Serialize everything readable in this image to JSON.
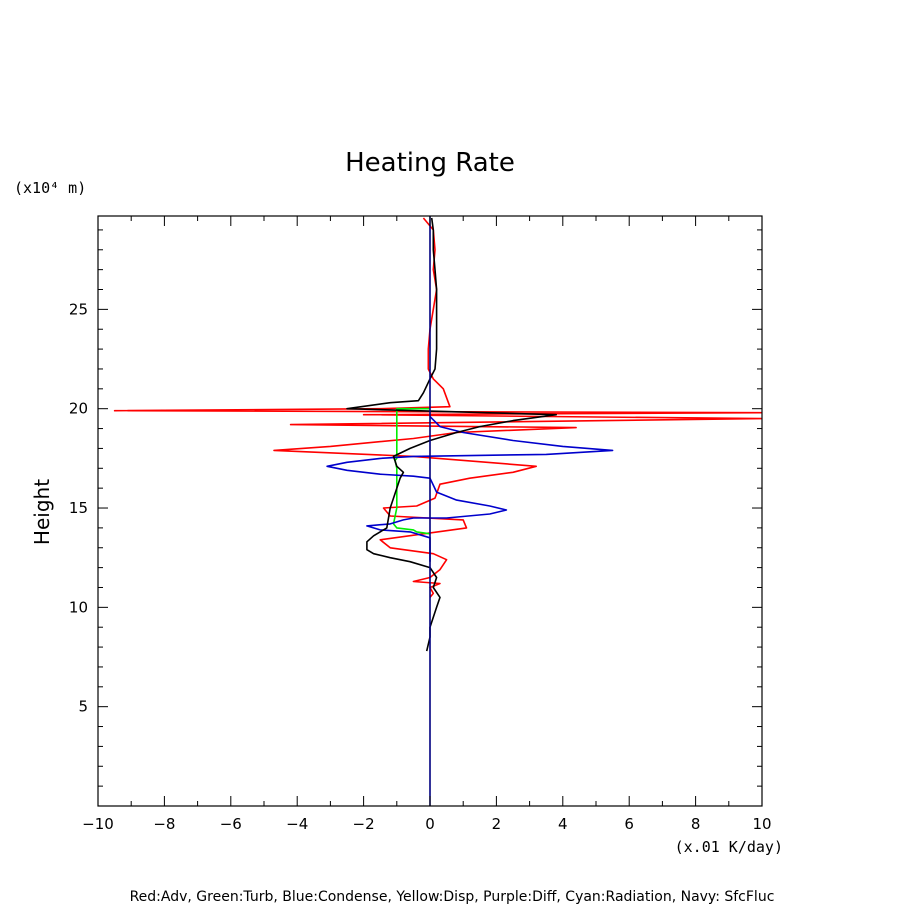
{
  "chart_data": {
    "type": "line",
    "title": "Heating Rate",
    "ylabel": "Height",
    "y_unit": "(x10⁴ m)",
    "x_unit": "(x.01 K/day)",
    "legend_text": "Red:Adv, Green:Turb, Blue:Condense, Yellow:Disp, Purple:Diff, Cyan:Radiation, Navy: SfcFluc",
    "xlim": [
      -10,
      10
    ],
    "ylim": [
      0,
      29.7
    ],
    "x_ticks": [
      -10,
      -8,
      -6,
      -4,
      -2,
      0,
      2,
      4,
      6,
      8,
      10
    ],
    "x_tick_labels": [
      "−10",
      "−8",
      "−6",
      "−4",
      "−2",
      "0",
      "2",
      "4",
      "6",
      "8",
      "10"
    ],
    "y_ticks": [
      5,
      10,
      15,
      20,
      25
    ],
    "y_tick_labels": [
      "5",
      "10",
      "15",
      "20",
      "25"
    ],
    "grid": false,
    "series": [
      {
        "color": "#ff0000",
        "points": [
          [
            -0.2,
            29.6
          ],
          [
            0.1,
            29.0
          ],
          [
            0.15,
            28.0
          ],
          [
            0.1,
            27.0
          ],
          [
            0.2,
            26.0
          ],
          [
            0.1,
            25.0
          ],
          [
            0.0,
            24.0
          ],
          [
            -0.05,
            23.0
          ],
          [
            -0.05,
            22.0
          ],
          [
            0.1,
            21.5
          ],
          [
            0.4,
            21.0
          ],
          [
            0.6,
            20.1
          ],
          [
            -1.5,
            20.0
          ],
          [
            -9.5,
            19.9
          ],
          [
            10.0,
            19.8
          ],
          [
            -2.0,
            19.7
          ],
          [
            10.0,
            19.5
          ],
          [
            -4.2,
            19.2
          ],
          [
            4.4,
            19.05
          ],
          [
            0.8,
            18.8
          ],
          [
            -0.5,
            18.5
          ],
          [
            -3.0,
            18.1
          ],
          [
            -4.7,
            17.9
          ],
          [
            -0.5,
            17.6
          ],
          [
            3.2,
            17.1
          ],
          [
            2.5,
            16.8
          ],
          [
            1.2,
            16.5
          ],
          [
            0.3,
            16.2
          ],
          [
            0.15,
            15.5
          ],
          [
            -0.4,
            15.1
          ],
          [
            -1.4,
            15.0
          ],
          [
            -1.2,
            14.6
          ],
          [
            1.0,
            14.4
          ],
          [
            1.1,
            14.0
          ],
          [
            -1.5,
            13.4
          ],
          [
            -1.2,
            13.0
          ],
          [
            0.1,
            12.7
          ],
          [
            0.5,
            12.4
          ],
          [
            0.3,
            11.9
          ],
          [
            0.0,
            11.5
          ],
          [
            -0.5,
            11.3
          ],
          [
            0.3,
            11.2
          ],
          [
            0.0,
            11.0
          ],
          [
            0.1,
            10.7
          ],
          [
            0.0,
            10.5
          ]
        ]
      },
      {
        "color": "#00ee00",
        "points": [
          [
            0.0,
            20.0
          ],
          [
            -1.0,
            20.0
          ],
          [
            -1.0,
            17.5
          ],
          [
            -1.05,
            17.4
          ],
          [
            -1.0,
            17.0
          ],
          [
            -1.0,
            15.0
          ],
          [
            -1.1,
            14.2
          ],
          [
            -1.0,
            14.0
          ],
          [
            -0.5,
            13.9
          ],
          [
            -0.4,
            13.8
          ],
          [
            0.0,
            13.7
          ]
        ]
      },
      {
        "color": "#0000cc",
        "points": [
          [
            0.0,
            19.6
          ],
          [
            0.3,
            19.1
          ],
          [
            1.0,
            18.8
          ],
          [
            2.5,
            18.4
          ],
          [
            4.0,
            18.1
          ],
          [
            5.5,
            17.9
          ],
          [
            3.5,
            17.7
          ],
          [
            -0.5,
            17.6
          ],
          [
            -1.5,
            17.5
          ],
          [
            -2.5,
            17.3
          ],
          [
            -3.1,
            17.1
          ],
          [
            -2.5,
            16.9
          ],
          [
            -1.5,
            16.7
          ],
          [
            -0.5,
            16.6
          ],
          [
            0.0,
            16.5
          ],
          [
            0.2,
            15.8
          ],
          [
            0.8,
            15.4
          ],
          [
            1.8,
            15.1
          ],
          [
            2.3,
            14.9
          ],
          [
            1.8,
            14.7
          ],
          [
            0.5,
            14.5
          ],
          [
            -0.5,
            14.5
          ],
          [
            -0.8,
            14.4
          ],
          [
            -1.2,
            14.2
          ],
          [
            -1.9,
            14.1
          ],
          [
            -1.5,
            13.9
          ],
          [
            -0.6,
            13.8
          ],
          [
            0.0,
            13.5
          ],
          [
            0.0,
            12.8
          ],
          [
            0.0,
            12.3
          ]
        ]
      },
      {
        "color": "#000000",
        "points": [
          [
            0.05,
            29.6
          ],
          [
            0.1,
            29.0
          ],
          [
            0.1,
            28.0
          ],
          [
            0.15,
            27.0
          ],
          [
            0.2,
            26.0
          ],
          [
            0.2,
            25.0
          ],
          [
            0.2,
            24.0
          ],
          [
            0.2,
            23.0
          ],
          [
            0.15,
            22.0
          ],
          [
            0.0,
            21.5
          ],
          [
            -0.2,
            20.8
          ],
          [
            -0.35,
            20.4
          ],
          [
            -1.2,
            20.3
          ],
          [
            -2.5,
            20.0
          ],
          [
            3.8,
            19.7
          ],
          [
            2.5,
            19.4
          ],
          [
            1.5,
            19.1
          ],
          [
            0.8,
            18.8
          ],
          [
            0.0,
            18.4
          ],
          [
            -0.6,
            18.0
          ],
          [
            -1.1,
            17.6
          ],
          [
            -1.0,
            17.1
          ],
          [
            -0.8,
            16.8
          ],
          [
            -0.9,
            16.5
          ],
          [
            -1.0,
            16.0
          ],
          [
            -1.1,
            15.5
          ],
          [
            -1.2,
            15.0
          ],
          [
            -1.25,
            14.5
          ],
          [
            -1.3,
            14.0
          ],
          [
            -1.7,
            13.6
          ],
          [
            -1.9,
            13.3
          ],
          [
            -1.9,
            12.9
          ],
          [
            -1.7,
            12.7
          ],
          [
            -1.2,
            12.5
          ],
          [
            -0.6,
            12.3
          ],
          [
            0.0,
            12.0
          ],
          [
            0.2,
            11.5
          ],
          [
            0.1,
            11.0
          ],
          [
            0.3,
            10.5
          ],
          [
            0.2,
            10.0
          ],
          [
            0.1,
            9.5
          ],
          [
            0.0,
            9.0
          ],
          [
            0.0,
            8.5
          ],
          [
            -0.1,
            7.8
          ]
        ]
      },
      {
        "color": "#000080",
        "points": [
          [
            0.0,
            29.7
          ],
          [
            0.0,
            0.0
          ]
        ]
      }
    ]
  }
}
